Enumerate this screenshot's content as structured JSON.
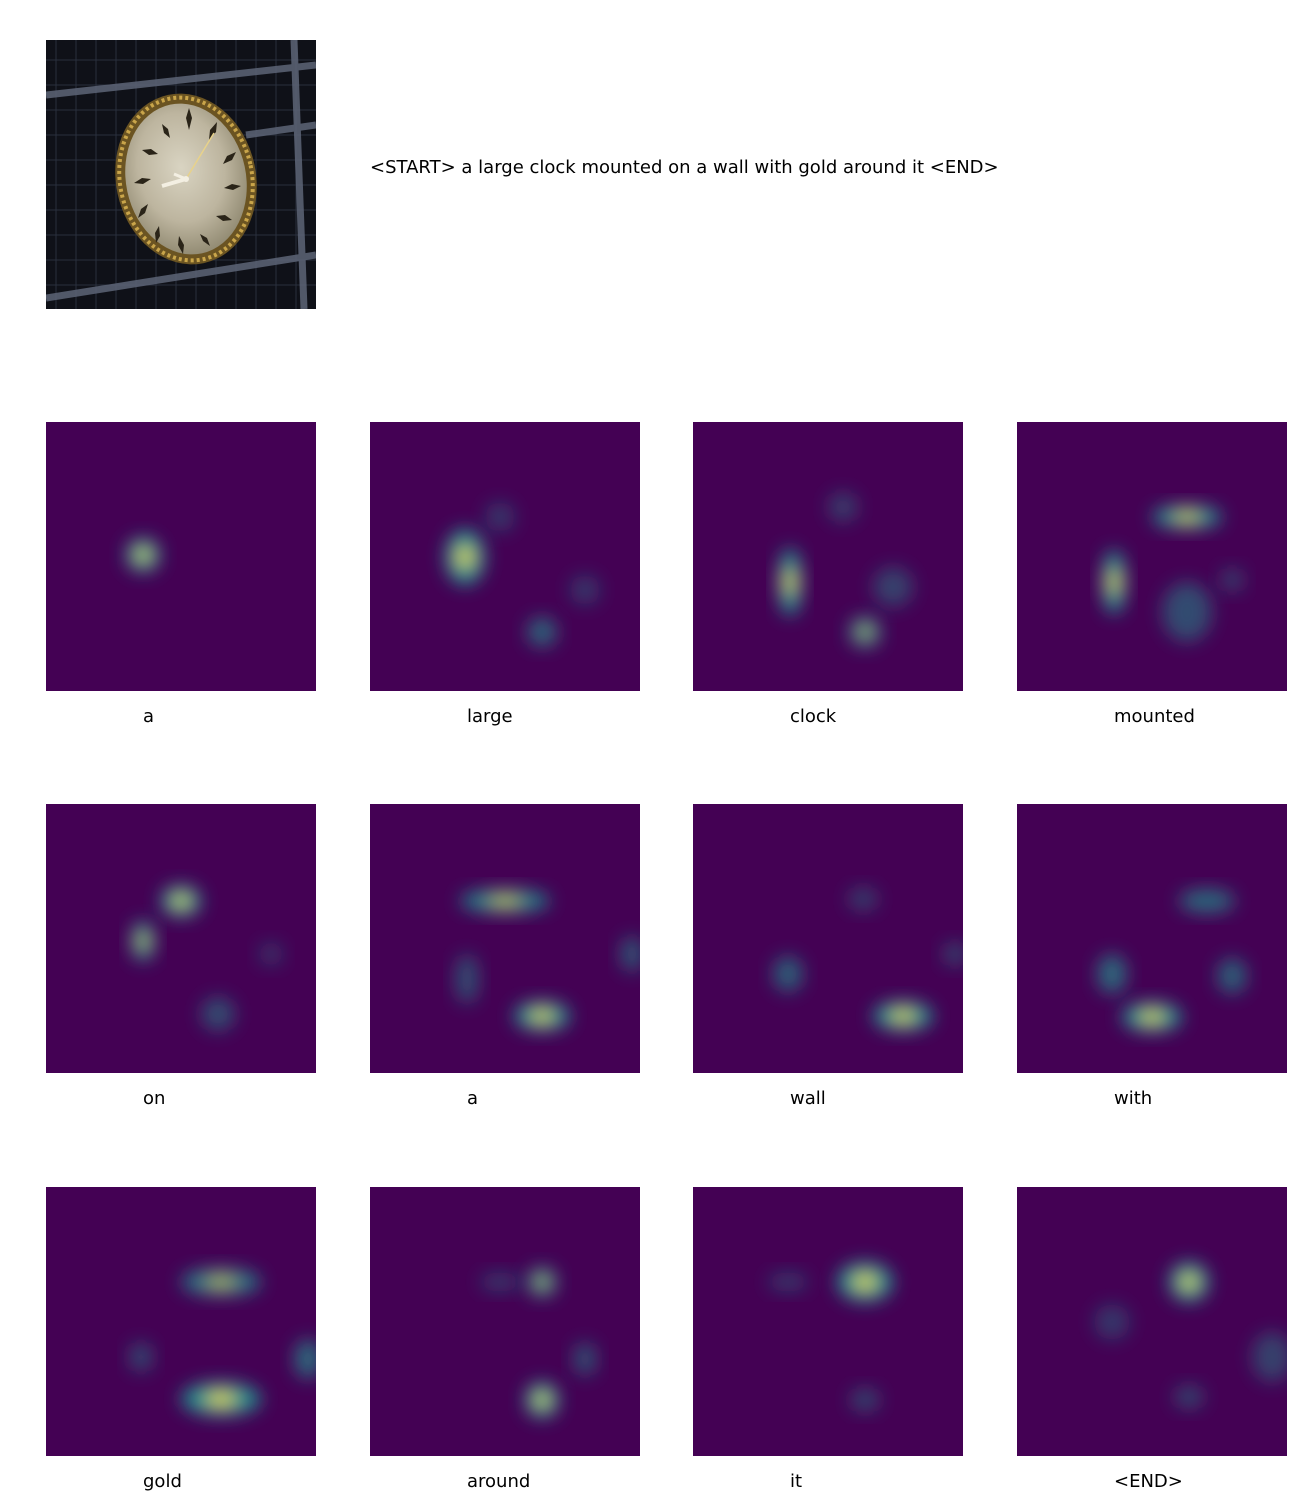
{
  "image": {
    "subject": "clock-photo",
    "caption": "<START> a large clock mounted on a wall with gold around it <END>"
  },
  "colormap": {
    "low": "#440154",
    "mid": "#21918c",
    "high": "#fde725"
  },
  "attention_steps": [
    {
      "word": "a"
    },
    {
      "word": "large"
    },
    {
      "word": "clock"
    },
    {
      "word": "mounted"
    },
    {
      "word": "on"
    },
    {
      "word": "a"
    },
    {
      "word": "wall"
    },
    {
      "word": "with"
    },
    {
      "word": "gold"
    },
    {
      "word": "around"
    },
    {
      "word": "it"
    },
    {
      "word": "<END>"
    }
  ]
}
